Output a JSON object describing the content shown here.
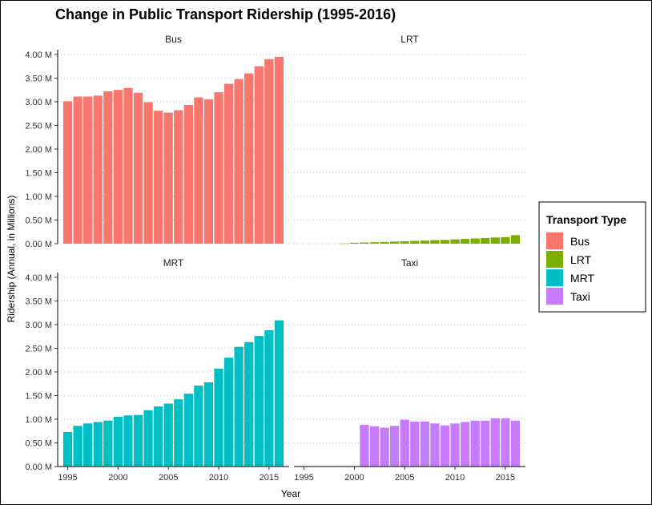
{
  "chart_data": {
    "type": "bar",
    "title": "Change in Public Transport Ridership (1995-2016)",
    "xlabel": "Year",
    "ylabel": "Ridership (Annual, in Millions)",
    "ylim": [
      0,
      4.1
    ],
    "y_ticks": [
      "0.00 M",
      "0.50 M",
      "1.00 M",
      "1.50 M",
      "2.00 M",
      "2.50 M",
      "3.00 M",
      "3.50 M",
      "4.00 M"
    ],
    "y_tick_values": [
      0,
      0.5,
      1,
      1.5,
      2,
      2.5,
      3,
      3.5,
      4
    ],
    "x_ticks": [
      "1995",
      "2000",
      "2005",
      "2010",
      "2015"
    ],
    "x_tick_values": [
      1995,
      2000,
      2005,
      2010,
      2015
    ],
    "xlim": [
      1994,
      2017
    ],
    "grid": "horizontal dotted",
    "legend": {
      "title": "Transport Type",
      "placement": "right"
    },
    "facets": [
      {
        "name": "Bus",
        "color": "#F8766D",
        "x": [
          1995,
          1996,
          1997,
          1998,
          1999,
          2000,
          2001,
          2002,
          2003,
          2004,
          2005,
          2006,
          2007,
          2008,
          2009,
          2010,
          2011,
          2012,
          2013,
          2014,
          2015,
          2016
        ],
        "values": [
          3.01,
          3.11,
          3.11,
          3.13,
          3.22,
          3.25,
          3.29,
          3.19,
          2.99,
          2.81,
          2.77,
          2.82,
          2.93,
          3.09,
          3.05,
          3.2,
          3.38,
          3.48,
          3.6,
          3.75,
          3.9,
          3.95
        ]
      },
      {
        "name": "LRT",
        "color": "#7CAE00",
        "x": [
          1999,
          2000,
          2001,
          2002,
          2003,
          2004,
          2005,
          2006,
          2007,
          2008,
          2009,
          2010,
          2011,
          2012,
          2013,
          2014,
          2015,
          2016
        ],
        "values": [
          0.005,
          0.02,
          0.025,
          0.03,
          0.035,
          0.045,
          0.05,
          0.06,
          0.065,
          0.075,
          0.08,
          0.09,
          0.1,
          0.11,
          0.12,
          0.13,
          0.14,
          0.18
        ]
      },
      {
        "name": "MRT",
        "color": "#00BFC4",
        "x": [
          1995,
          1996,
          1997,
          1998,
          1999,
          2000,
          2001,
          2002,
          2003,
          2004,
          2005,
          2006,
          2007,
          2008,
          2009,
          2010,
          2011,
          2012,
          2013,
          2014,
          2015,
          2016
        ],
        "values": [
          0.73,
          0.86,
          0.91,
          0.94,
          0.97,
          1.05,
          1.08,
          1.09,
          1.19,
          1.27,
          1.33,
          1.42,
          1.54,
          1.71,
          1.78,
          2.07,
          2.3,
          2.53,
          2.63,
          2.76,
          2.88,
          3.09
        ]
      },
      {
        "name": "Taxi",
        "color": "#C77CFF",
        "x": [
          2001,
          2002,
          2003,
          2004,
          2005,
          2006,
          2007,
          2008,
          2009,
          2010,
          2011,
          2012,
          2013,
          2014,
          2015,
          2016
        ],
        "values": [
          0.88,
          0.85,
          0.82,
          0.86,
          0.99,
          0.95,
          0.95,
          0.91,
          0.87,
          0.91,
          0.94,
          0.97,
          0.97,
          1.02,
          1.02,
          0.97
        ]
      }
    ]
  }
}
